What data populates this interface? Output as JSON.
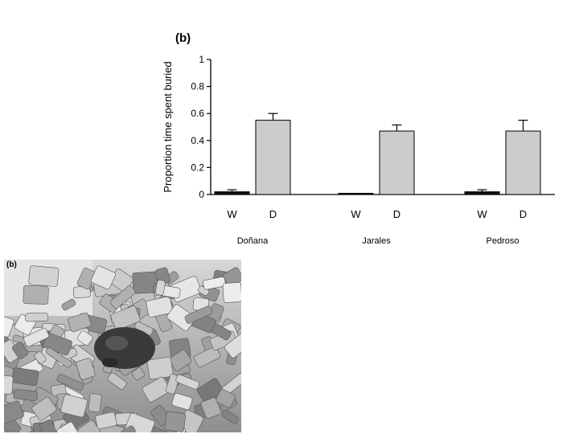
{
  "chart_data": {
    "type": "bar",
    "panel_label": "(b)",
    "ylabel": "Proportion time spent buried",
    "ylim": [
      0,
      1
    ],
    "yticks": [
      "0",
      "0.2",
      "0.4",
      "0.6",
      "0.8",
      "1"
    ],
    "ytick_values": [
      0,
      0.2,
      0.4,
      0.6,
      0.8,
      1
    ],
    "groups": [
      {
        "name": "Doñana",
        "bars": [
          {
            "label": "W",
            "value": 0.02,
            "error": 0.015,
            "color": "#111111"
          },
          {
            "label": "D",
            "value": 0.55,
            "error": 0.05,
            "color": "#cccccc"
          }
        ]
      },
      {
        "name": "Jarales",
        "bars": [
          {
            "label": "W",
            "value": 0.005,
            "error": 0.0,
            "color": "#111111"
          },
          {
            "label": "D",
            "value": 0.47,
            "error": 0.045,
            "color": "#cccccc"
          }
        ]
      },
      {
        "name": "Pedroso",
        "bars": [
          {
            "label": "W",
            "value": 0.02,
            "error": 0.015,
            "color": "#111111"
          },
          {
            "label": "D",
            "value": 0.47,
            "error": 0.08,
            "color": "#cccccc"
          }
        ]
      }
    ]
  },
  "photo": {
    "label": "(b)"
  }
}
